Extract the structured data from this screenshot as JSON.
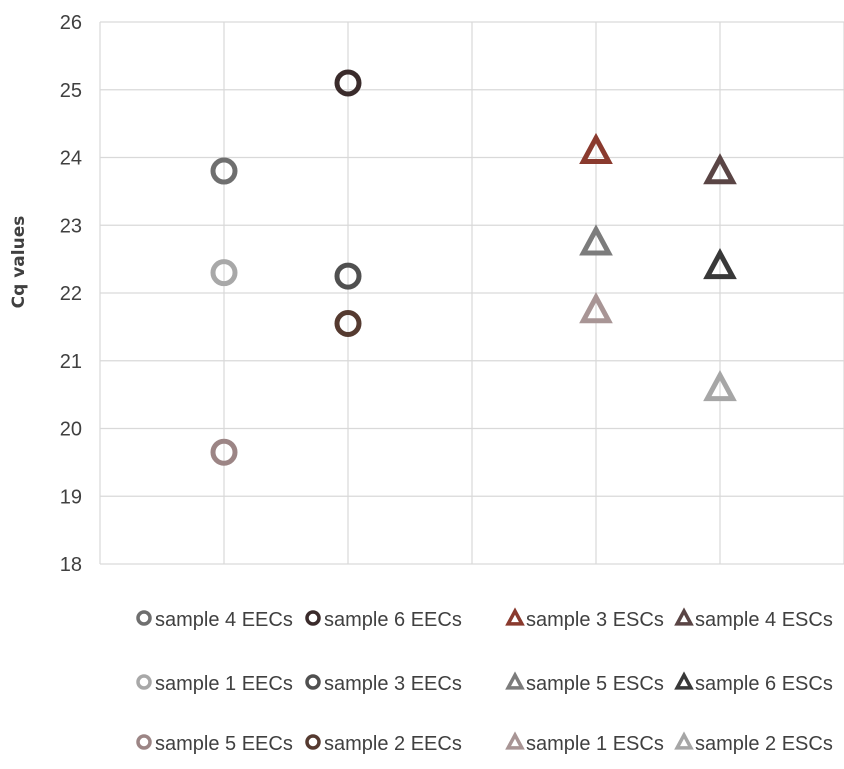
{
  "chart_data": {
    "type": "scatter",
    "title": "",
    "xlabel": "",
    "ylabel": "Cq values",
    "ylim": [
      18,
      26
    ],
    "yticks": [
      18,
      19,
      20,
      21,
      22,
      23,
      24,
      25,
      26
    ],
    "xlim": [
      0,
      6
    ],
    "grid": true,
    "legend_position": "bottom",
    "series": [
      {
        "name": "sample 4 EECs",
        "marker": "circle",
        "color": "#6f6f6f",
        "x": 1,
        "y": 23.8
      },
      {
        "name": "sample 6 EECs",
        "marker": "circle",
        "color": "#3a2b2b",
        "x": 2,
        "y": 25.1
      },
      {
        "name": "sample 3 ESCs",
        "marker": "triangle",
        "color": "#8a3a2e",
        "x": 4,
        "y": 24.1
      },
      {
        "name": "sample 4 ESCs",
        "marker": "triangle",
        "color": "#5a4545",
        "x": 5,
        "y": 23.8
      },
      {
        "name": "sample 1 EECs",
        "marker": "circle",
        "color": "#a8a8a8",
        "x": 1,
        "y": 22.3
      },
      {
        "name": "sample 3 EECs",
        "marker": "circle",
        "color": "#505050",
        "x": 2,
        "y": 22.25
      },
      {
        "name": "sample 5 ESCs",
        "marker": "triangle",
        "color": "#7c7c7c",
        "x": 4,
        "y": 22.75
      },
      {
        "name": "sample 6 ESCs",
        "marker": "triangle",
        "color": "#383838",
        "x": 5,
        "y": 22.4
      },
      {
        "name": "sample 5 EECs",
        "marker": "circle",
        "color": "#9c8585",
        "x": 1,
        "y": 19.65
      },
      {
        "name": "sample 2 EECs",
        "marker": "circle",
        "color": "#553a30",
        "x": 2,
        "y": 21.55
      },
      {
        "name": "sample 1 ESCs",
        "marker": "triangle",
        "color": "#a89595",
        "x": 4,
        "y": 21.75
      },
      {
        "name": "sample 2 ESCs",
        "marker": "triangle",
        "color": "#a6a6a6",
        "x": 5,
        "y": 20.6
      }
    ]
  }
}
